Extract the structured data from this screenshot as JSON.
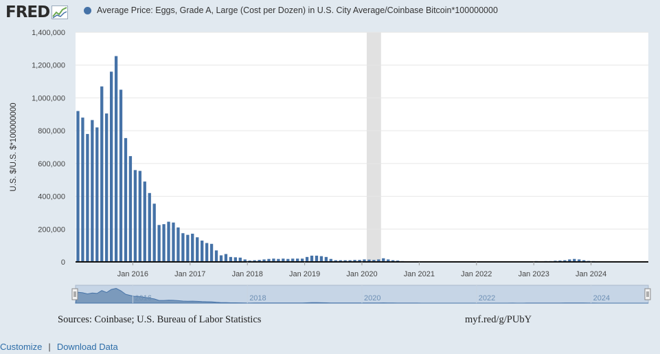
{
  "header": {
    "logo_text": "FRED",
    "legend_label": "Average Price: Eggs, Grade A, Large (Cost per Dozen) in U.S. City Average/Coinbase Bitcoin*100000000",
    "series_color": "#4572a7"
  },
  "footer": {
    "sources": "Sources: Coinbase; U.S. Bureau of Labor Statistics",
    "shortlink": "myf.red/g/PUbY",
    "customize_label": "Customize",
    "separator": "|",
    "download_label": "Download Data"
  },
  "chart_data": {
    "type": "bar",
    "ylabel": "U.S. $/U.S. $*100000000",
    "ylim": [
      0,
      1400000
    ],
    "yticks": [
      0,
      200000,
      400000,
      600000,
      800000,
      1000000,
      1200000,
      1400000
    ],
    "ytick_labels": [
      "0",
      "200,000",
      "400,000",
      "600,000",
      "800,000",
      "1,000,000",
      "1,200,000",
      "1,400,000"
    ],
    "xticks": [
      "Jan 2016",
      "Jan 2017",
      "Jan 2018",
      "Jan 2019",
      "Jan 2020",
      "Jan 2021",
      "Jan 2022",
      "Jan 2023",
      "Jan 2024"
    ],
    "grid": true,
    "recession_shading": [
      "2020-02",
      "2020-04"
    ],
    "start": "2015-01",
    "end": "2024-12",
    "values": [
      920000,
      880000,
      780000,
      865000,
      820000,
      1070000,
      905000,
      1160000,
      1255000,
      1050000,
      755000,
      645000,
      560000,
      555000,
      490000,
      420000,
      355000,
      225000,
      230000,
      245000,
      240000,
      210000,
      175000,
      165000,
      172000,
      150000,
      130000,
      115000,
      110000,
      70000,
      40000,
      48000,
      30000,
      28000,
      26000,
      15000,
      8000,
      10000,
      12000,
      15000,
      18000,
      20000,
      18000,
      20000,
      18000,
      20000,
      20000,
      20000,
      30000,
      38000,
      38000,
      35000,
      30000,
      18000,
      10000,
      10000,
      10000,
      10000,
      12000,
      12000,
      15000,
      14000,
      12000,
      15000,
      22000,
      15000,
      10000,
      8000,
      5000,
      4000,
      3000,
      3000,
      2000,
      2000,
      2000,
      1500,
      1500,
      1500,
      1500,
      1500,
      1500,
      1500,
      1500,
      1500,
      1500,
      1500,
      1500,
      1500,
      1500,
      1500,
      2000,
      3000,
      2000,
      2000,
      3000,
      4000,
      5000,
      4000,
      5000,
      5000,
      7000,
      8000,
      10000,
      15000,
      18000,
      15000,
      10000,
      6000,
      5000,
      2000,
      1500,
      1500,
      1500,
      1500,
      1500,
      1500,
      1500,
      1500,
      1500,
      1500
    ],
    "navigator_labels": [
      "2016",
      "2018",
      "2020",
      "2022",
      "2024"
    ]
  }
}
